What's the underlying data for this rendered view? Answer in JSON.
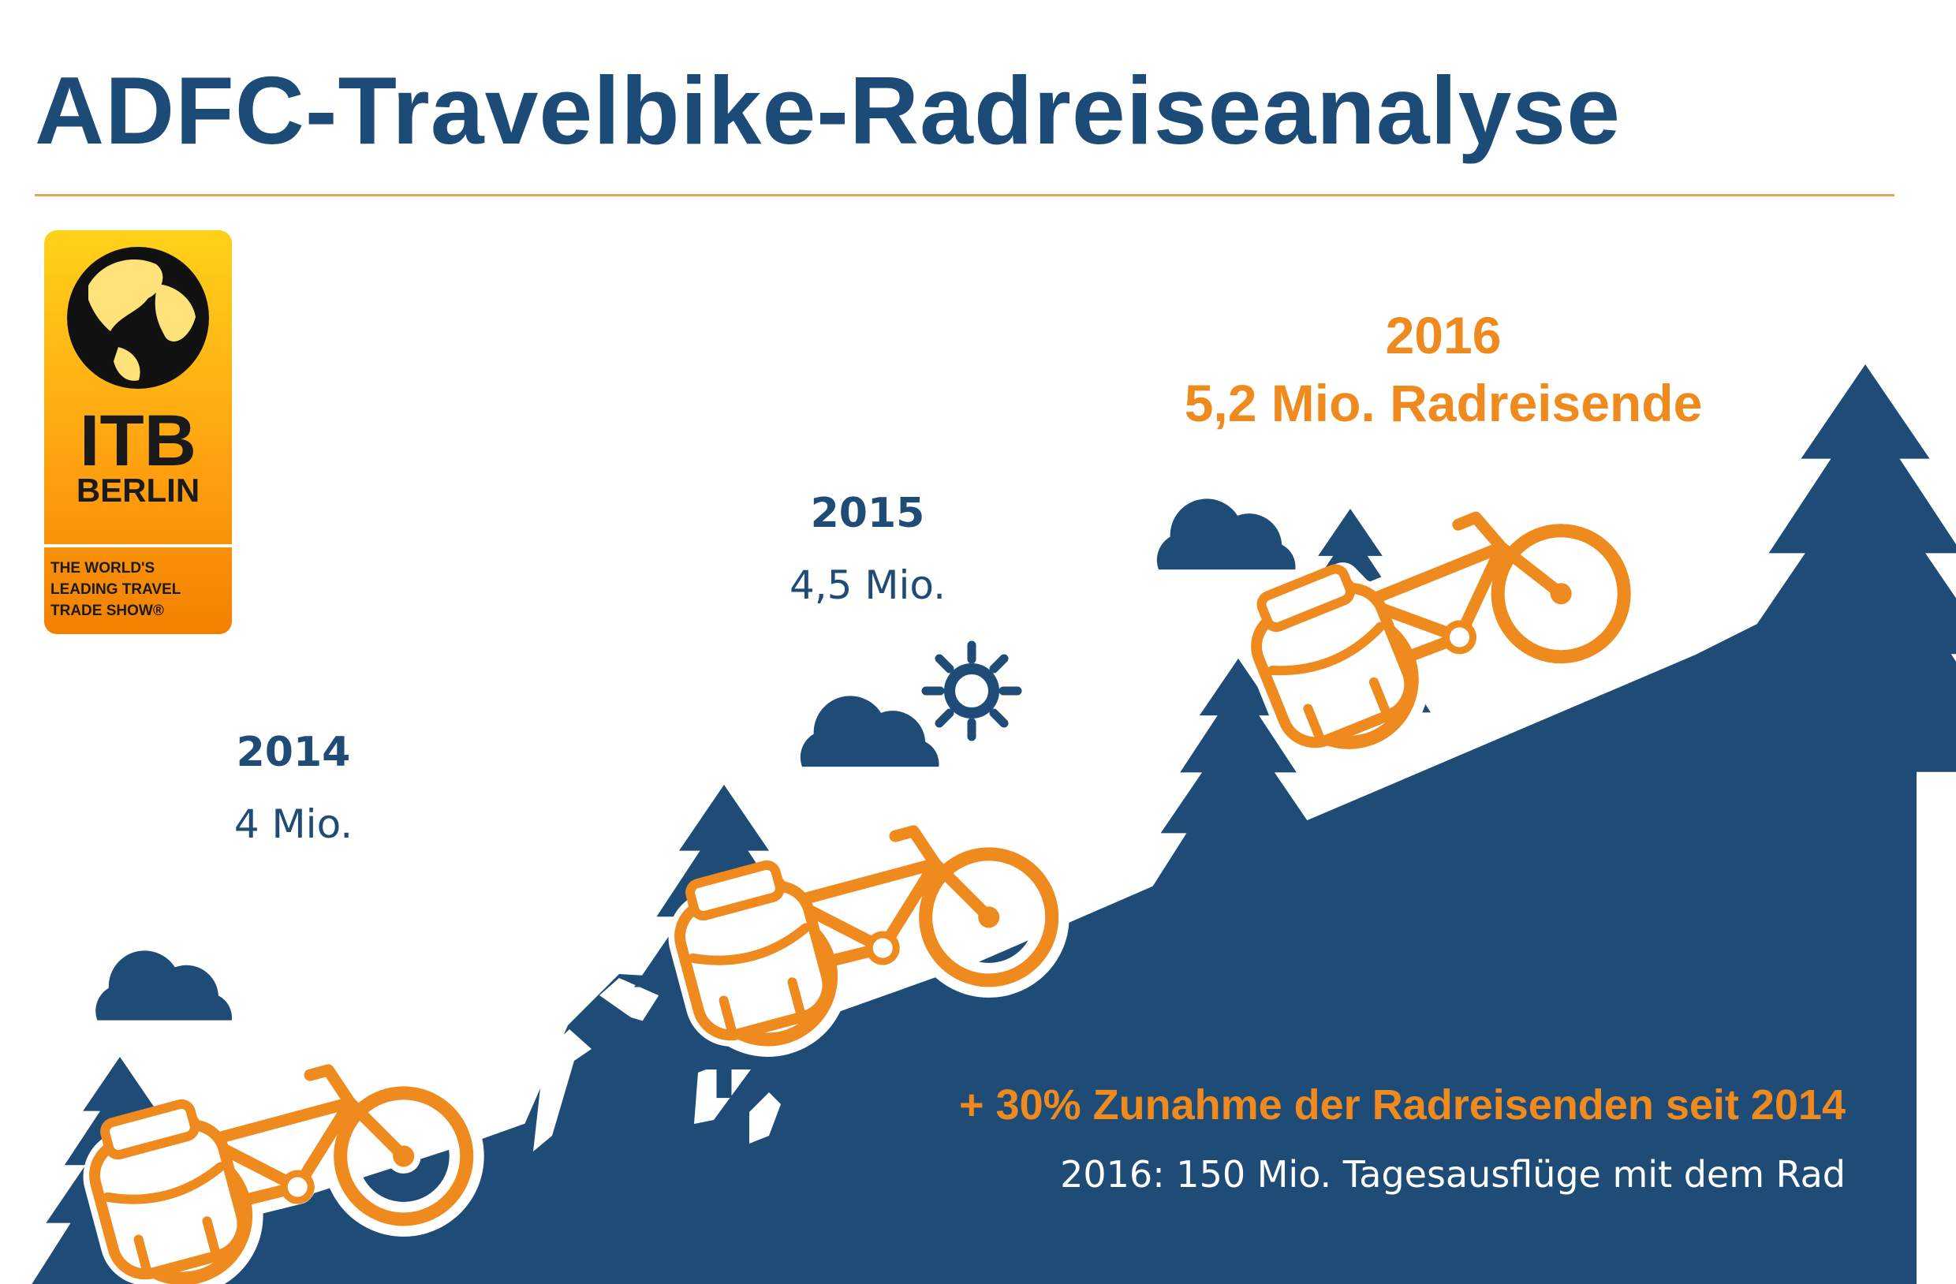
{
  "title": "ADFC-Travelbike-Radreiseanalyse",
  "logo": {
    "name": "ITB",
    "city": "BERLIN",
    "tagline": [
      "THE WORLD'S",
      "LEADING TRAVEL",
      "TRADE SHOW®"
    ]
  },
  "milestones": [
    {
      "year": "2014",
      "value": "4 Mio."
    },
    {
      "year": "2015",
      "value": "4,5 Mio."
    },
    {
      "year": "2016",
      "value": "5,2 Mio. Radreisende"
    }
  ],
  "highlight": "+ 30% Zunahme der Radreisenden seit 2014",
  "subline": "2016: 150 Mio. Tagesausflüge mit dem Rad",
  "colors": {
    "navy": "#1d4b78",
    "orange": "#ee8a1e",
    "rule": "#e1a45b"
  },
  "icons": [
    "globe-icon",
    "cloud-icon",
    "sun-icon",
    "tree-icon",
    "bicycle-icon",
    "mountain-icon"
  ]
}
